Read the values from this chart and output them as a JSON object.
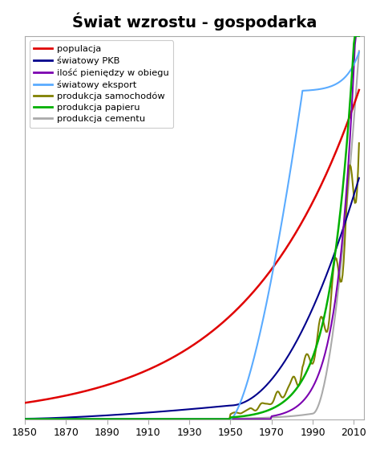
{
  "title": "Świat wzrostu - gospodarka",
  "title_fontsize": 14,
  "title_fontweight": "bold",
  "xlim": [
    1850,
    2015
  ],
  "ylim": [
    0,
    1
  ],
  "xticks": [
    1850,
    1870,
    1890,
    1910,
    1930,
    1950,
    1970,
    1990,
    2010
  ],
  "background_color": "#ffffff",
  "legend_entries": [
    {
      "label": "populacja",
      "color": "#e00000"
    },
    {
      "label": "światowy PKB",
      "color": "#00008b"
    },
    {
      "label": "ilość pieniędzy w obiegu",
      "color": "#7b00b0"
    },
    {
      "label": "światowy eksport",
      "color": "#5aabff"
    },
    {
      "label": "produkcja samochodów",
      "color": "#808000"
    },
    {
      "label": "produkcja papieru",
      "color": "#00b000"
    },
    {
      "label": "produkcja cementu",
      "color": "#aaaaaa"
    }
  ]
}
